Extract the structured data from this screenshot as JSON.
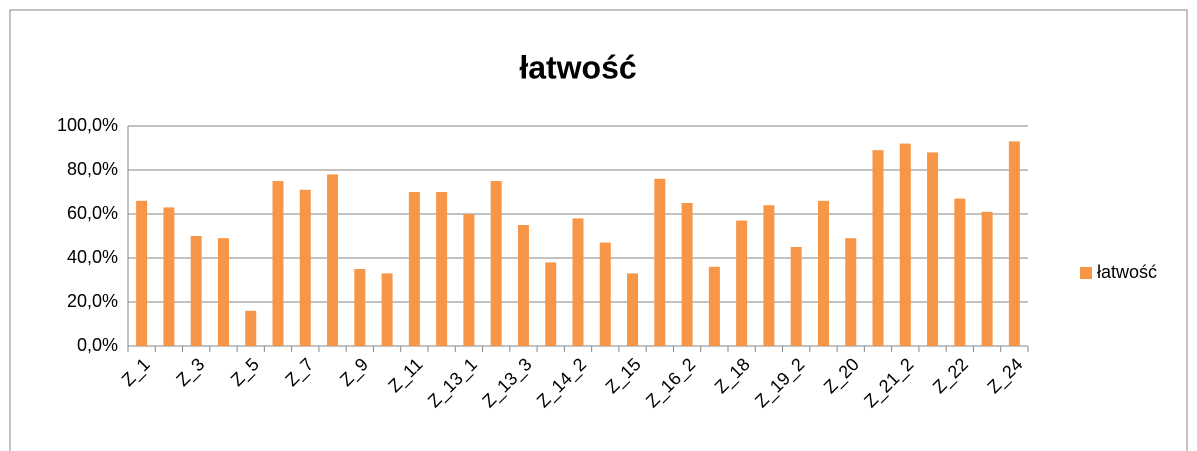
{
  "chart_data": {
    "type": "bar",
    "title": "łatwość",
    "categories": [
      "Z_1",
      null,
      "Z_3",
      null,
      "Z_5",
      null,
      "Z_7",
      null,
      "Z_9",
      null,
      "Z_11",
      null,
      "Z_13_1",
      null,
      "Z_13_3",
      null,
      "Z_14_2",
      null,
      "Z_15",
      null,
      "Z_16_2",
      null,
      "Z_18",
      null,
      "Z_19_2",
      null,
      "Z_20",
      null,
      "Z_21_2",
      null,
      "Z_22",
      null,
      "Z_24"
    ],
    "series": [
      {
        "name": "łatwość",
        "color": "#f79646",
        "values": [
          66,
          63,
          50,
          49,
          16,
          75,
          71,
          78,
          35,
          33,
          70,
          70,
          60,
          75,
          55,
          38,
          58,
          47,
          33,
          76,
          65,
          36,
          57,
          64,
          45,
          66,
          49,
          89,
          92,
          88,
          67,
          61,
          93
        ]
      }
    ],
    "ylim": [
      0,
      100
    ],
    "yticks": [
      {
        "value": 0,
        "label": "0,0%"
      },
      {
        "value": 20,
        "label": "20,0%"
      },
      {
        "value": 40,
        "label": "40,0%"
      },
      {
        "value": 60,
        "label": "60,0%"
      },
      {
        "value": 80,
        "label": "80,0%"
      },
      {
        "value": 100,
        "label": "100,0%"
      }
    ],
    "grid": true,
    "legend": "right"
  }
}
